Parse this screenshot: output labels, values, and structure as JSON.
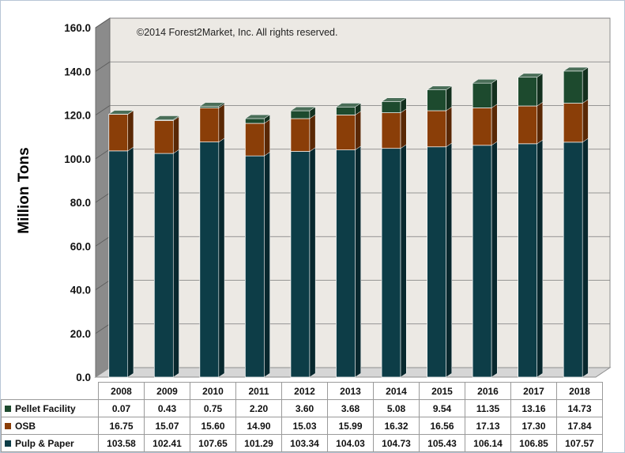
{
  "chart_data": {
    "type": "bar",
    "stacked": true,
    "categories": [
      "2008",
      "2009",
      "2010",
      "2011",
      "2012",
      "2013",
      "2014",
      "2015",
      "2016",
      "2017",
      "2018"
    ],
    "series": [
      {
        "name": "Pulp & Paper",
        "color": "#0d3d47",
        "values": [
          103.58,
          102.41,
          107.65,
          101.29,
          103.34,
          104.03,
          104.73,
          105.43,
          106.14,
          106.85,
          107.57
        ],
        "labels": [
          "103.58",
          "102.41",
          "107.65",
          "101.29",
          "103.34",
          "104.03",
          "104.73",
          "105.43",
          "106.14",
          "106.85",
          "107.57"
        ]
      },
      {
        "name": "OSB",
        "color": "#8a3e08",
        "values": [
          16.75,
          15.07,
          15.6,
          14.9,
          15.03,
          15.99,
          16.32,
          16.56,
          17.13,
          17.3,
          17.84
        ],
        "labels": [
          "16.75",
          "15.07",
          "15.60",
          "14.90",
          "15.03",
          "15.99",
          "16.32",
          "16.56",
          "17.13",
          "17.30",
          "17.84"
        ]
      },
      {
        "name": "Pellet Facility",
        "color": "#1d4a2e",
        "values": [
          0.07,
          0.43,
          0.75,
          2.2,
          3.6,
          3.68,
          5.08,
          9.54,
          11.35,
          13.16,
          14.73
        ],
        "labels": [
          "0.07",
          "0.43",
          "0.75",
          "2.20",
          "3.60",
          "3.68",
          "5.08",
          "9.54",
          "11.35",
          "13.16",
          "14.73"
        ]
      }
    ],
    "table_rows": [
      "Pellet Facility",
      "OSB",
      "Pulp & Paper"
    ],
    "ylabel": "Million Tons",
    "ylim": [
      0,
      160
    ],
    "yticks": [
      "0.0",
      "20.0",
      "40.0",
      "60.0",
      "80.0",
      "100.0",
      "120.0",
      "140.0",
      "160.0"
    ],
    "annotation": "©2014 Forest2Market, Inc. All rights reserved.",
    "grid": true,
    "legend": "data-table"
  }
}
